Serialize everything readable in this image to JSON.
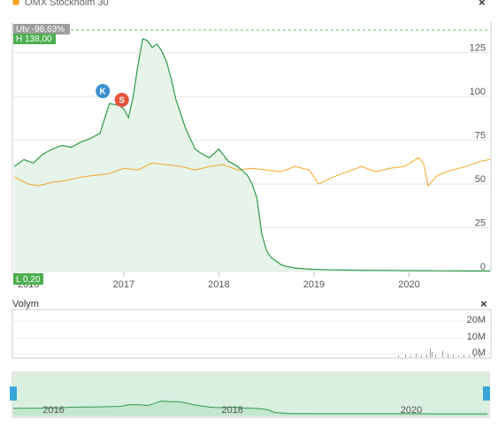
{
  "legend": {
    "compare_name": "OMX Stockholm 30",
    "close_label": "×",
    "compare_color": "#f5a623"
  },
  "badges": {
    "change": "Utv -98,63%",
    "high": "H 138,00",
    "low": "L 0,20"
  },
  "markers": [
    {
      "letter": "K",
      "date": "2016-12.85",
      "color": "#3a8fd1"
    },
    {
      "letter": "S",
      "date": "2017-01.2",
      "color": "#e8503a"
    }
  ],
  "volume": {
    "title": "Volym",
    "close_label": "×",
    "ticks": [
      "20M",
      "10M",
      "0M"
    ]
  },
  "navigator": {
    "ticks": [
      "2016",
      "2018",
      "2020"
    ]
  },
  "colors": {
    "main": "#2e9a47",
    "main_fill": "#e6f4ea",
    "compare": "#f5a623",
    "grid": "#e6e6e6",
    "high_line": "#6abf69"
  },
  "chart_data": {
    "type": "line",
    "x_ticks": [
      "2016",
      "2017",
      "2018",
      "2019",
      "2020"
    ],
    "y_ticks": [
      0,
      25,
      50,
      75,
      100,
      125
    ],
    "ylim": [
      0,
      140
    ],
    "high": 138.0,
    "low": 0.2,
    "series": [
      {
        "role": "main",
        "x": [
          2015.85,
          2015.95,
          2016.05,
          2016.15,
          2016.25,
          2016.35,
          2016.45,
          2016.55,
          2016.65,
          2016.75,
          2016.85,
          2016.95,
          2017.0,
          2017.05,
          2017.1,
          2017.15,
          2017.2,
          2017.25,
          2017.3,
          2017.35,
          2017.4,
          2017.45,
          2017.5,
          2017.55,
          2017.6,
          2017.65,
          2017.7,
          2017.75,
          2017.8,
          2017.9,
          2018.0,
          2018.1,
          2018.2,
          2018.3,
          2018.35,
          2018.4,
          2018.45,
          2018.5,
          2018.55,
          2018.6,
          2018.65,
          2018.7,
          2018.8,
          2018.9,
          2019.0,
          2019.2,
          2019.5,
          2019.8,
          2020.0,
          2020.3,
          2020.6,
          2020.85
        ],
        "y": [
          60,
          64,
          62,
          67,
          70,
          72,
          71,
          74,
          76,
          79,
          96,
          95,
          93,
          88,
          100,
          118,
          133,
          132,
          128,
          130,
          126,
          120,
          110,
          98,
          90,
          82,
          76,
          70,
          68,
          65,
          70,
          63,
          60,
          55,
          50,
          42,
          22,
          12,
          8,
          6,
          4,
          3,
          2,
          1.5,
          1.2,
          0.9,
          0.7,
          0.6,
          0.5,
          0.4,
          0.3,
          0.3
        ]
      },
      {
        "role": "compare",
        "x": [
          2015.85,
          2016.0,
          2016.1,
          2016.25,
          2016.4,
          2016.55,
          2016.7,
          2016.85,
          2017.0,
          2017.15,
          2017.3,
          2017.45,
          2017.6,
          2017.75,
          2017.9,
          2018.05,
          2018.2,
          2018.35,
          2018.5,
          2018.65,
          2018.8,
          2018.95,
          2019.05,
          2019.2,
          2019.35,
          2019.5,
          2019.65,
          2019.8,
          2019.95,
          2020.1,
          2020.15,
          2020.2,
          2020.3,
          2020.45,
          2020.6,
          2020.75,
          2020.85
        ],
        "y": [
          54,
          50,
          49,
          51,
          52,
          54,
          55,
          56,
          59,
          58,
          62,
          61,
          60,
          58,
          60,
          61,
          58,
          59,
          58,
          57,
          60,
          58,
          50,
          54,
          57,
          60,
          57,
          59,
          60,
          65,
          62,
          49,
          55,
          58,
          60,
          63,
          64
        ]
      }
    ]
  }
}
